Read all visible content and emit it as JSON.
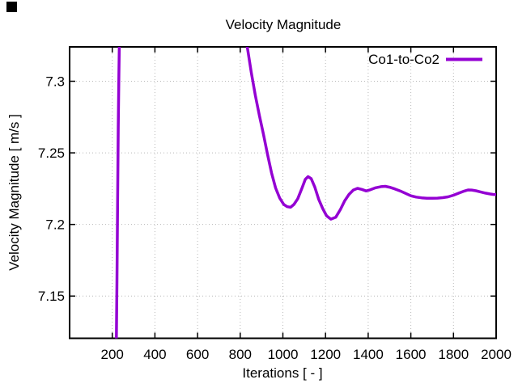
{
  "screen_artifacts": [
    {
      "name": "black-square-top-left",
      "color": "#000000"
    }
  ],
  "colors": {
    "background": "#ffffff",
    "axis": "#000000",
    "grid": "#b8b8b8",
    "series_purple": "#9400d3"
  },
  "legend": {
    "entries": [
      {
        "label": "Co1-to-Co2",
        "color": "#9400d3"
      }
    ],
    "position": "top-right-inside"
  },
  "chart_data": {
    "type": "line",
    "title": "Velocity Magnitude",
    "xlabel": "Iterations [ - ]",
    "ylabel": "Velocity Magnitude [ m/s ]",
    "xlim": [
      0,
      2000
    ],
    "ylim": [
      7.1205,
      7.324
    ],
    "grid": true,
    "legend_position": "top-right-inside",
    "xticks": [
      200,
      400,
      600,
      800,
      1000,
      1200,
      1400,
      1600,
      1800,
      2000
    ],
    "xtick_labels": [
      "200",
      "400",
      "600",
      "800",
      "1000",
      "1200",
      "1400",
      "1600",
      "1800",
      "2000"
    ],
    "yticks": [
      7.15,
      7.2,
      7.25,
      7.3
    ],
    "ytick_labels": [
      "7.15",
      "7.2",
      "7.25",
      "7.3"
    ],
    "colors": {
      "axis": "#000000",
      "grid": "#b8b8b8",
      "background": "#ffffff"
    },
    "series": [
      {
        "name": "Co1-to-Co2",
        "color": "#9400d3",
        "clipped_note": "curve exceeds plot top (above 7.324) between iterations ~233 and ~833",
        "segments": [
          [
            [
              219.5,
              7.1205
            ],
            [
              222,
              7.16
            ],
            [
              225,
              7.215
            ],
            [
              228,
              7.268
            ],
            [
              231,
              7.305
            ],
            [
              233,
              7.324
            ]
          ],
          [
            [
              833,
              7.324
            ],
            [
              852,
              7.306
            ],
            [
              871,
              7.29
            ],
            [
              890,
              7.276
            ],
            [
              909,
              7.263
            ],
            [
              928,
              7.249
            ],
            [
              947,
              7.236
            ],
            [
              966,
              7.2255
            ],
            [
              985,
              7.2185
            ],
            [
              1004,
              7.214
            ],
            [
              1020,
              7.2124
            ],
            [
              1036,
              7.212
            ],
            [
              1052,
              7.214
            ],
            [
              1070,
              7.218
            ],
            [
              1090,
              7.2255
            ],
            [
              1105,
              7.2315
            ],
            [
              1118,
              7.2334
            ],
            [
              1133,
              7.232
            ],
            [
              1150,
              7.226
            ],
            [
              1168,
              7.2175
            ],
            [
              1187,
              7.211
            ],
            [
              1205,
              7.206
            ],
            [
              1225,
              7.2037
            ],
            [
              1248,
              7.205
            ],
            [
              1270,
              7.2105
            ],
            [
              1290,
              7.2165
            ],
            [
              1310,
              7.221
            ],
            [
              1330,
              7.224
            ],
            [
              1350,
              7.2252
            ],
            [
              1370,
              7.2245
            ],
            [
              1390,
              7.2234
            ],
            [
              1410,
              7.2242
            ],
            [
              1435,
              7.2256
            ],
            [
              1460,
              7.2264
            ],
            [
              1480,
              7.2266
            ],
            [
              1500,
              7.226
            ],
            [
              1525,
              7.2248
            ],
            [
              1550,
              7.2234
            ],
            [
              1575,
              7.2217
            ],
            [
              1600,
              7.22
            ],
            [
              1625,
              7.2191
            ],
            [
              1650,
              7.2186
            ],
            [
              1675,
              7.2183
            ],
            [
              1700,
              7.2183
            ],
            [
              1725,
              7.2184
            ],
            [
              1750,
              7.2187
            ],
            [
              1775,
              7.2193
            ],
            [
              1800,
              7.2204
            ],
            [
              1825,
              7.2219
            ],
            [
              1850,
              7.2233
            ],
            [
              1868,
              7.2241
            ],
            [
              1885,
              7.224
            ],
            [
              1905,
              7.2235
            ],
            [
              1925,
              7.2228
            ],
            [
              1950,
              7.2219
            ],
            [
              1970,
              7.2213
            ],
            [
              1985,
              7.221
            ],
            [
              2000,
              7.2208
            ]
          ]
        ]
      }
    ]
  }
}
